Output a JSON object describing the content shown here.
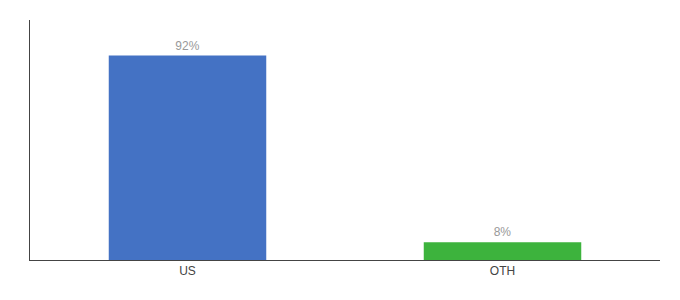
{
  "chart_data": {
    "type": "bar",
    "categories": [
      "US",
      "OTH"
    ],
    "values": [
      92,
      8
    ],
    "value_labels": [
      "92%",
      "8%"
    ],
    "colors": [
      "#4472c4",
      "#3db33d"
    ],
    "data_labels": true,
    "ylim": [
      0,
      108
    ],
    "yticks": [],
    "tick_labels": "x",
    "grid": false
  }
}
